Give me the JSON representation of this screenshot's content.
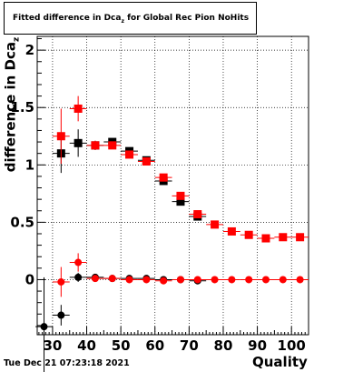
{
  "title": {
    "main": "Fitted difference in Dca",
    "sub": "z",
    "rest": " for Global Rec Pion NoHits"
  },
  "footer_timestamp": "Tue Dec 21 07:23:18 2021",
  "colors": {
    "accent": "#ff0000",
    "secondary": "#000000",
    "grid": "#000000"
  },
  "chart_data": {
    "type": "scatter",
    "title": "Fitted difference in Dcaz for Global Rec Pion NoHits",
    "xlabel": "Quality",
    "ylabel": "difference in Dca",
    "ylabel_sub": "z",
    "xlim": [
      25.5,
      105
    ],
    "ylim": [
      -0.48,
      2.12
    ],
    "xticks": [
      30,
      40,
      50,
      60,
      70,
      80,
      90,
      100
    ],
    "xtick_labels": [
      "30",
      "40",
      "50",
      "60",
      "70",
      "80",
      "90",
      "100"
    ],
    "yticks": [
      0,
      0.5,
      1,
      1.5,
      2
    ],
    "ytick_labels": [
      "0",
      "0.5",
      "1",
      "1.5",
      "2"
    ],
    "grid": true,
    "series": [
      {
        "marker": "square",
        "color": "#000000",
        "x": [
          32.5,
          37.5,
          42.5,
          47.5,
          52.5,
          57.5,
          62.5,
          67.5,
          72.5
        ],
        "y": [
          1.1,
          1.19,
          1.17,
          1.2,
          1.12,
          1.04,
          0.86,
          0.68,
          0.55
        ],
        "yerr": [
          0.17,
          0.12,
          0.04,
          0.03,
          0.03,
          0.03,
          0.03,
          0.03,
          0.03
        ]
      },
      {
        "marker": "square",
        "color": "#ff0000",
        "x": [
          32.5,
          37.5,
          42.5,
          47.5,
          52.5,
          57.5,
          62.5,
          67.5,
          72.5,
          77.5,
          82.5,
          87.5,
          92.5,
          97.5,
          102.5
        ],
        "y": [
          1.25,
          1.49,
          1.17,
          1.17,
          1.09,
          1.03,
          0.89,
          0.73,
          0.57,
          0.48,
          0.42,
          0.39,
          0.36,
          0.37,
          0.37
        ],
        "yerr": [
          0.24,
          0.11,
          0.04,
          0.03,
          0.03,
          0.03,
          0.03,
          0.03,
          0.02,
          0.02,
          0.02,
          0.02,
          0.02,
          0.02,
          0.02
        ]
      },
      {
        "marker": "circle",
        "color": "#000000",
        "x": [
          27.5,
          32.5,
          37.5,
          42.5,
          47.5,
          52.5,
          57.5,
          62.5,
          67.5,
          72.5
        ],
        "y": [
          -0.41,
          -0.31,
          0.02,
          0.02,
          0.01,
          0.01,
          0.01,
          0.0,
          0.0,
          -0.01
        ],
        "yerr": [
          0.43,
          0.09,
          0.04,
          0.02,
          0.02,
          0.02,
          0.02,
          0.02,
          0.02,
          0.02
        ]
      },
      {
        "marker": "circle",
        "color": "#ff0000",
        "x": [
          32.5,
          37.5,
          42.5,
          47.5,
          52.5,
          57.5,
          62.5,
          67.5,
          72.5,
          77.5,
          82.5,
          87.5,
          92.5,
          97.5,
          102.5
        ],
        "y": [
          -0.02,
          0.15,
          0.01,
          0.01,
          0.0,
          0.0,
          -0.01,
          0.0,
          0.0,
          0.0,
          0.0,
          0.0,
          0.0,
          0.0,
          0.0
        ],
        "yerr": [
          0.13,
          0.08,
          0.03,
          0.02,
          0.02,
          0.02,
          0.02,
          0.02,
          0.02,
          0.02,
          0.02,
          0.02,
          0.02,
          0.02,
          0.02
        ]
      }
    ]
  }
}
